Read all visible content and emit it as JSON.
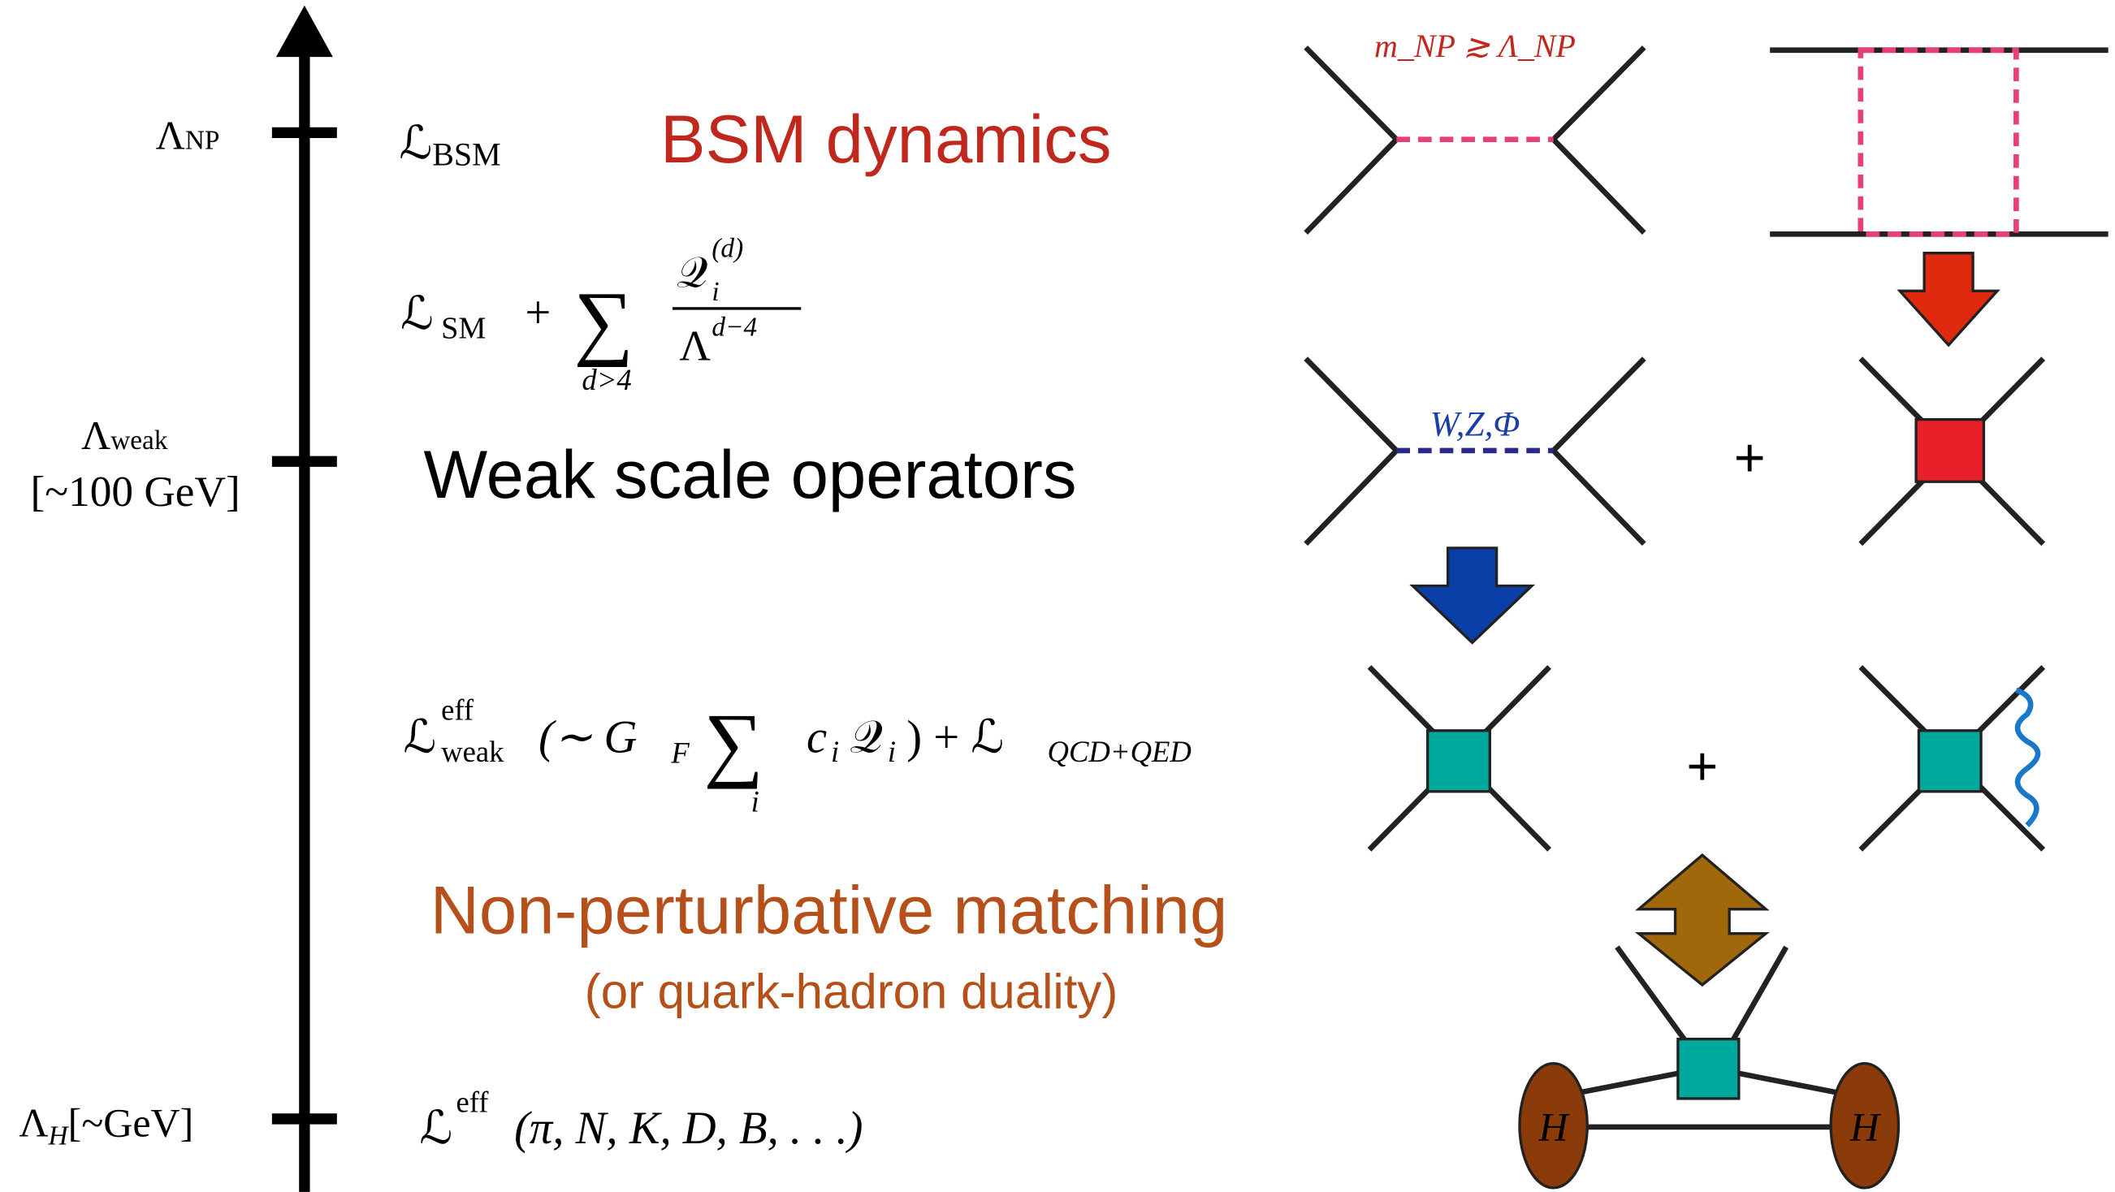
{
  "scales": [
    {
      "symbol": "Λ",
      "sub": "NP"
    },
    {
      "symbol": "Λ",
      "sub": "weak",
      "note": "[~100 GeV]"
    },
    {
      "symbol": "Λ",
      "sub": "H",
      "note": "[~GeV]"
    }
  ],
  "lagrangians": {
    "bsm": {
      "main": "ℒ",
      "sub": "BSM"
    },
    "smeft": {
      "main": "ℒ",
      "sub": "SM",
      "plus": "+",
      "sum": "∑",
      "sum_sub": "d>4",
      "num": "𝒬",
      "num_sub": "i",
      "num_sup": "(d)",
      "den": "Λ",
      "den_sup": "d−4"
    },
    "weak_eff": {
      "main": "ℒ",
      "sup": "eff",
      "sub": "weak",
      "open": "(∼ G",
      "open_sub": "F",
      "sum": "∑",
      "sum_sub": "i",
      "coef": "c",
      "coef_sub": "i",
      "op": "𝒬",
      "op_sub": "i",
      "close": ") + ℒ",
      "close_sub": "QCD+QED"
    },
    "hadronic": {
      "main": "ℒ",
      "sup": "eff",
      "args": "(π, N, K, D, B, . . .)"
    }
  },
  "headings": [
    "BSM dynamics",
    "Weak scale operators",
    "Non-perturbative matching",
    "(or quark-hadron duality)"
  ],
  "diagram_labels": {
    "mass_condition": "m_NP ≳ Λ_NP",
    "mediators": "W,Z,Φ",
    "plus": [
      "+",
      "+"
    ],
    "hadrons": [
      "H",
      "H"
    ]
  }
}
